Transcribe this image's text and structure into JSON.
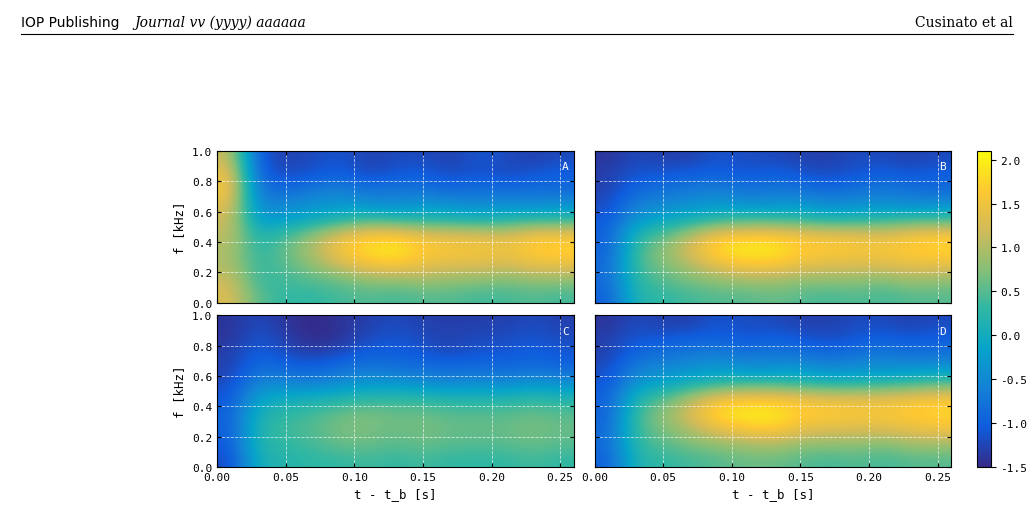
{
  "header": {
    "left": "IOP Publishing",
    "center": "Journal vv (yyyy) aaaaaa",
    "right": "Cusinato et al"
  },
  "colorbar": {
    "range": [
      -1.5,
      2.1
    ],
    "ticks": [
      {
        "value": -1.5,
        "label": "-1.5"
      },
      {
        "value": -1.0,
        "label": "-1.0"
      },
      {
        "value": -0.5,
        "label": "-0.5"
      },
      {
        "value": 0.0,
        "label": "0.0"
      },
      {
        "value": 0.5,
        "label": "0.5"
      },
      {
        "value": 1.0,
        "label": "1.0"
      },
      {
        "value": 1.5,
        "label": "1.5"
      },
      {
        "value": 2.0,
        "label": "2.0"
      }
    ]
  },
  "chart_data": [
    {
      "type": "heatmap",
      "title": "A",
      "xlabel": null,
      "ylabel": "f [kHz]",
      "tick_labels": "y",
      "grid": true,
      "xlim": [
        0,
        0.26
      ],
      "ylim": [
        0,
        1.0
      ],
      "xticks": [
        {
          "value": 0.0,
          "label": "0.00"
        },
        {
          "value": 0.05,
          "label": "0.05"
        },
        {
          "value": 0.1,
          "label": "0.10"
        },
        {
          "value": 0.15,
          "label": "0.15"
        },
        {
          "value": 0.2,
          "label": "0.20"
        },
        {
          "value": 0.25,
          "label": "0.25"
        }
      ],
      "yticks": [
        {
          "value": 0.0,
          "label": "0.0"
        },
        {
          "value": 0.2,
          "label": "0.2"
        },
        {
          "value": 0.4,
          "label": "0.4"
        },
        {
          "value": 0.6,
          "label": "0.6"
        },
        {
          "value": 0.8,
          "label": "0.8"
        },
        {
          "value": 1.0,
          "label": "1.0"
        }
      ],
      "x": [
        0.01,
        0.03,
        0.05,
        0.07,
        0.09,
        0.11,
        0.13,
        0.15,
        0.17,
        0.19,
        0.21,
        0.23,
        0.25
      ],
      "y": [
        0.05,
        0.15,
        0.25,
        0.35,
        0.45,
        0.55,
        0.65,
        0.75,
        0.85,
        0.95
      ],
      "cells": [
        [
          1.3,
          0.5,
          0.3,
          0.3,
          0.4,
          0.5,
          0.4,
          0.5,
          0.5,
          0.4,
          0.4,
          0.5,
          0.4
        ],
        [
          1.2,
          0.3,
          0.4,
          0.5,
          0.6,
          0.8,
          0.8,
          0.9,
          0.8,
          0.8,
          0.7,
          0.8,
          0.8
        ],
        [
          1.0,
          0.3,
          0.5,
          0.8,
          1.2,
          1.5,
          1.6,
          1.4,
          1.3,
          1.3,
          1.2,
          1.4,
          1.4
        ],
        [
          1.0,
          0.2,
          0.6,
          1.0,
          1.6,
          1.9,
          2.0,
          1.7,
          1.6,
          1.6,
          1.5,
          1.7,
          1.8
        ],
        [
          1.1,
          0.1,
          0.4,
          0.8,
          1.3,
          1.6,
          1.6,
          1.4,
          1.3,
          1.3,
          1.2,
          1.5,
          1.5
        ],
        [
          1.2,
          -0.3,
          -0.2,
          0.0,
          0.2,
          0.4,
          0.3,
          0.2,
          0.2,
          0.1,
          0.2,
          0.3,
          0.3
        ],
        [
          1.4,
          -0.6,
          -0.5,
          -0.4,
          -0.3,
          -0.4,
          -0.5,
          -0.3,
          -0.4,
          -0.5,
          -0.4,
          -0.5,
          -0.4
        ],
        [
          1.6,
          -0.8,
          -0.9,
          -0.7,
          -0.6,
          -0.8,
          -0.7,
          -0.8,
          -0.9,
          -0.8,
          -0.9,
          -0.8,
          -0.9
        ],
        [
          1.5,
          -1.0,
          -1.2,
          -1.1,
          -1.0,
          -1.2,
          -1.1,
          -1.0,
          -1.2,
          -1.1,
          -1.2,
          -1.1,
          -1.0
        ],
        [
          1.2,
          -1.1,
          -1.3,
          -1.2,
          -1.1,
          -1.3,
          -1.2,
          -1.2,
          -1.3,
          -1.1,
          -1.2,
          -1.3,
          -1.2
        ]
      ]
    },
    {
      "type": "heatmap",
      "title": "B",
      "xlabel": null,
      "ylabel": null,
      "tick_labels": false,
      "grid": true,
      "xlim": [
        0,
        0.26
      ],
      "ylim": [
        0,
        1.0
      ],
      "xticks": [
        {
          "value": 0.0,
          "label": "0.00"
        },
        {
          "value": 0.05,
          "label": "0.05"
        },
        {
          "value": 0.1,
          "label": "0.10"
        },
        {
          "value": 0.15,
          "label": "0.15"
        },
        {
          "value": 0.2,
          "label": "0.20"
        },
        {
          "value": 0.25,
          "label": "0.25"
        }
      ],
      "yticks": [
        {
          "value": 0.0,
          "label": "0.0"
        },
        {
          "value": 0.2,
          "label": "0.2"
        },
        {
          "value": 0.4,
          "label": "0.4"
        },
        {
          "value": 0.6,
          "label": "0.6"
        },
        {
          "value": 0.8,
          "label": "0.8"
        },
        {
          "value": 1.0,
          "label": "1.0"
        }
      ],
      "x": [
        0.01,
        0.03,
        0.05,
        0.07,
        0.09,
        0.11,
        0.13,
        0.15,
        0.17,
        0.19,
        0.21,
        0.23,
        0.25
      ],
      "y": [
        0.05,
        0.15,
        0.25,
        0.35,
        0.45,
        0.55,
        0.65,
        0.75,
        0.85,
        0.95
      ],
      "cells": [
        [
          -1.0,
          0.2,
          0.3,
          0.4,
          0.5,
          0.5,
          0.6,
          0.5,
          0.4,
          0.5,
          0.4,
          0.5,
          0.5
        ],
        [
          -0.9,
          0.3,
          0.5,
          0.7,
          0.8,
          0.9,
          0.9,
          0.8,
          0.8,
          0.8,
          0.7,
          0.9,
          0.8
        ],
        [
          -0.9,
          0.4,
          0.7,
          1.0,
          1.4,
          1.6,
          1.6,
          1.4,
          1.3,
          1.3,
          1.3,
          1.4,
          1.4
        ],
        [
          -1.0,
          0.4,
          0.8,
          1.3,
          1.9,
          2.0,
          2.0,
          1.7,
          1.7,
          1.6,
          1.6,
          1.7,
          1.8
        ],
        [
          -1.0,
          0.2,
          0.5,
          1.0,
          1.5,
          1.6,
          1.6,
          1.5,
          1.4,
          1.4,
          1.3,
          1.5,
          1.6
        ],
        [
          -1.1,
          -0.3,
          -0.1,
          0.1,
          0.3,
          0.4,
          0.4,
          0.3,
          0.2,
          0.2,
          0.3,
          0.4,
          0.4
        ],
        [
          -1.2,
          -0.6,
          -0.5,
          -0.4,
          -0.3,
          -0.4,
          -0.4,
          -0.3,
          -0.5,
          -0.4,
          -0.4,
          -0.5,
          -0.4
        ],
        [
          -1.3,
          -0.9,
          -0.8,
          -0.7,
          -0.6,
          -0.8,
          -0.7,
          -0.8,
          -0.9,
          -0.8,
          -0.7,
          -0.8,
          -0.9
        ],
        [
          -1.3,
          -1.1,
          -1.1,
          -1.0,
          -1.0,
          -1.1,
          -1.0,
          -1.1,
          -1.2,
          -1.1,
          -1.0,
          -1.1,
          -1.0
        ],
        [
          -1.4,
          -1.2,
          -1.3,
          -1.3,
          -1.1,
          -1.2,
          -1.2,
          -1.3,
          -1.3,
          -1.2,
          -1.2,
          -1.3,
          -1.2
        ]
      ]
    },
    {
      "type": "heatmap",
      "title": "C",
      "xlabel": "t - t_b [s]",
      "ylabel": "f [kHz]",
      "tick_labels": true,
      "grid": true,
      "xlim": [
        0,
        0.26
      ],
      "ylim": [
        0,
        1.0
      ],
      "xticks": [
        {
          "value": 0.0,
          "label": "0.00"
        },
        {
          "value": 0.05,
          "label": "0.05"
        },
        {
          "value": 0.1,
          "label": "0.10"
        },
        {
          "value": 0.15,
          "label": "0.15"
        },
        {
          "value": 0.2,
          "label": "0.20"
        },
        {
          "value": 0.25,
          "label": "0.25"
        }
      ],
      "yticks": [
        {
          "value": 0.0,
          "label": "0.0"
        },
        {
          "value": 0.2,
          "label": "0.2"
        },
        {
          "value": 0.4,
          "label": "0.4"
        },
        {
          "value": 0.6,
          "label": "0.6"
        },
        {
          "value": 0.8,
          "label": "0.8"
        },
        {
          "value": 1.0,
          "label": "1.0"
        }
      ],
      "x": [
        0.01,
        0.03,
        0.05,
        0.07,
        0.09,
        0.11,
        0.13,
        0.15,
        0.17,
        0.19,
        0.21,
        0.23,
        0.25
      ],
      "y": [
        0.05,
        0.15,
        0.25,
        0.35,
        0.45,
        0.55,
        0.65,
        0.75,
        0.85,
        0.95
      ],
      "cells": [
        [
          -1.2,
          0.1,
          0.2,
          0.3,
          0.3,
          0.4,
          0.3,
          0.4,
          0.3,
          0.3,
          0.3,
          0.4,
          0.3
        ],
        [
          -1.1,
          0.2,
          0.3,
          0.4,
          0.6,
          0.6,
          0.5,
          0.6,
          0.5,
          0.5,
          0.5,
          0.6,
          0.5
        ],
        [
          -1.0,
          0.2,
          0.4,
          0.5,
          0.7,
          0.7,
          0.6,
          0.7,
          0.6,
          0.6,
          0.6,
          0.7,
          0.6
        ],
        [
          -1.0,
          0.1,
          0.3,
          0.4,
          0.6,
          0.7,
          0.6,
          0.6,
          0.5,
          0.5,
          0.5,
          0.6,
          0.5
        ],
        [
          -1.1,
          -0.1,
          0.0,
          0.1,
          0.2,
          0.3,
          0.3,
          0.3,
          0.2,
          0.2,
          0.2,
          0.3,
          0.2
        ],
        [
          -1.2,
          -0.5,
          -0.5,
          -0.6,
          -0.4,
          -0.3,
          -0.3,
          -0.4,
          -0.5,
          -0.4,
          -0.5,
          -0.3,
          -0.4
        ],
        [
          -1.3,
          -0.8,
          -0.9,
          -1.0,
          -0.8,
          -0.7,
          -0.8,
          -0.8,
          -0.9,
          -0.8,
          -0.9,
          -0.8,
          -0.9
        ],
        [
          -1.3,
          -1.0,
          -1.2,
          -1.3,
          -1.2,
          -1.0,
          -1.0,
          -1.1,
          -1.2,
          -1.1,
          -1.1,
          -1.0,
          -1.1
        ],
        [
          -1.4,
          -1.1,
          -1.3,
          -1.5,
          -1.4,
          -1.2,
          -1.1,
          -1.2,
          -1.3,
          -1.2,
          -1.2,
          -1.1,
          -1.2
        ],
        [
          -1.4,
          -1.2,
          -1.4,
          -1.5,
          -1.4,
          -1.3,
          -1.2,
          -1.3,
          -1.3,
          -1.3,
          -1.3,
          -1.2,
          -1.3
        ]
      ]
    },
    {
      "type": "heatmap",
      "title": "D",
      "xlabel": "t - t_b [s]",
      "ylabel": null,
      "tick_labels": "x",
      "grid": true,
      "xlim": [
        0,
        0.26
      ],
      "ylim": [
        0,
        1.0
      ],
      "xticks": [
        {
          "value": 0.0,
          "label": "0.00"
        },
        {
          "value": 0.05,
          "label": "0.05"
        },
        {
          "value": 0.1,
          "label": "0.10"
        },
        {
          "value": 0.15,
          "label": "0.15"
        },
        {
          "value": 0.2,
          "label": "0.20"
        },
        {
          "value": 0.25,
          "label": "0.25"
        }
      ],
      "yticks": [
        {
          "value": 0.0,
          "label": "0.0"
        },
        {
          "value": 0.2,
          "label": "0.2"
        },
        {
          "value": 0.4,
          "label": "0.4"
        },
        {
          "value": 0.6,
          "label": "0.6"
        },
        {
          "value": 0.8,
          "label": "0.8"
        },
        {
          "value": 1.0,
          "label": "1.0"
        }
      ],
      "x": [
        0.01,
        0.03,
        0.05,
        0.07,
        0.09,
        0.11,
        0.13,
        0.15,
        0.17,
        0.19,
        0.21,
        0.23,
        0.25
      ],
      "y": [
        0.05,
        0.15,
        0.25,
        0.35,
        0.45,
        0.55,
        0.65,
        0.75,
        0.85,
        0.95
      ],
      "cells": [
        [
          -1.0,
          0.2,
          0.3,
          0.4,
          0.5,
          0.6,
          0.6,
          0.5,
          0.4,
          0.5,
          0.4,
          0.5,
          0.5
        ],
        [
          -0.9,
          0.3,
          0.5,
          0.7,
          0.8,
          0.9,
          1.0,
          0.8,
          0.8,
          0.8,
          0.7,
          0.9,
          0.9
        ],
        [
          -0.9,
          0.4,
          0.7,
          1.0,
          1.4,
          1.6,
          1.7,
          1.4,
          1.3,
          1.3,
          1.3,
          1.4,
          1.5
        ],
        [
          -1.0,
          0.4,
          0.8,
          1.3,
          1.9,
          2.0,
          2.0,
          1.7,
          1.7,
          1.6,
          1.6,
          1.7,
          1.8
        ],
        [
          -1.0,
          0.2,
          0.5,
          1.0,
          1.5,
          1.6,
          1.6,
          1.5,
          1.4,
          1.4,
          1.4,
          1.5,
          1.6
        ],
        [
          -1.1,
          -0.3,
          -0.1,
          0.1,
          0.3,
          0.4,
          0.4,
          0.3,
          0.2,
          0.2,
          0.3,
          0.4,
          0.5
        ],
        [
          -1.2,
          -0.6,
          -0.5,
          -0.4,
          -0.3,
          -0.4,
          -0.4,
          -0.3,
          -0.5,
          -0.4,
          -0.4,
          -0.4,
          -0.3
        ],
        [
          -1.3,
          -0.9,
          -0.8,
          -0.7,
          -0.6,
          -0.8,
          -0.7,
          -0.8,
          -0.9,
          -0.8,
          -0.7,
          -0.8,
          -0.8
        ],
        [
          -1.3,
          -1.1,
          -1.1,
          -1.0,
          -1.0,
          -1.1,
          -1.0,
          -1.1,
          -1.2,
          -1.1,
          -1.0,
          -1.1,
          -1.0
        ],
        [
          -1.4,
          -1.2,
          -1.3,
          -1.3,
          -1.1,
          -1.2,
          -1.2,
          -1.3,
          -1.3,
          -1.2,
          -1.2,
          -1.3,
          -1.2
        ]
      ]
    }
  ]
}
